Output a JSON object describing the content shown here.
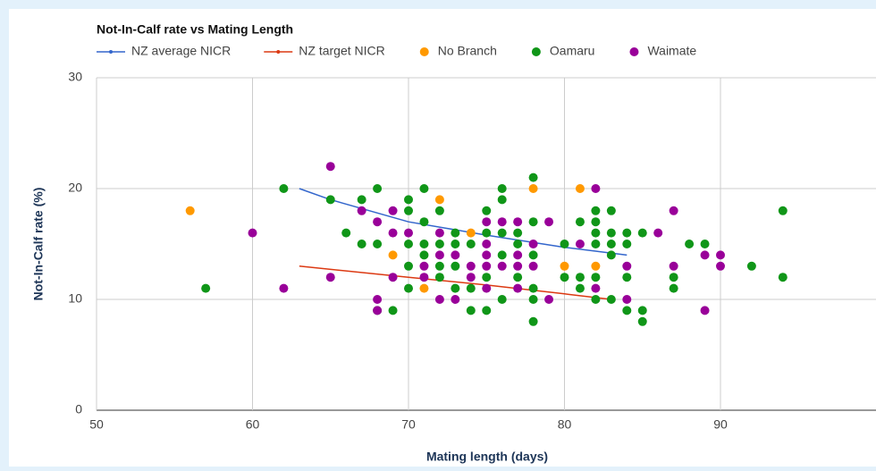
{
  "chart_data": {
    "type": "scatter",
    "title": "Not-In-Calf rate vs Mating Length",
    "x_label": "Mating length (days)",
    "y_label": "Not-In-Calf rate (%)",
    "xlim": [
      50,
      100
    ],
    "ylim": [
      0,
      30
    ],
    "xticks": [
      50,
      60,
      70,
      80,
      90
    ],
    "yticks": [
      0,
      10,
      20,
      30
    ],
    "grid": true,
    "legend": "top",
    "series": [
      {
        "name": "NZ average NICR",
        "color": "#3366cc",
        "type": "line",
        "x": [
          63,
          65,
          70,
          75,
          80,
          84
        ],
        "values": [
          20,
          19,
          17,
          15.8,
          14.7,
          14
        ]
      },
      {
        "name": "NZ target NICR",
        "color": "#dc3912",
        "type": "line",
        "x": [
          63,
          70,
          75,
          80,
          83
        ],
        "values": [
          13,
          12,
          11.3,
          10.5,
          10
        ]
      },
      {
        "name": "No Branch",
        "color": "#ff9900",
        "type": "scatter",
        "x": [
          56,
          69,
          71,
          72,
          74,
          78,
          80,
          81,
          82
        ],
        "values": [
          18,
          14,
          11,
          19,
          16,
          20,
          13,
          20,
          13
        ]
      },
      {
        "name": "Oamaru",
        "color": "#109618",
        "type": "scatter",
        "x": [
          57,
          62,
          65,
          66,
          67,
          67,
          68,
          68,
          68,
          69,
          70,
          70,
          70,
          70,
          70,
          71,
          71,
          71,
          71,
          72,
          72,
          72,
          72,
          73,
          73,
          73,
          73,
          74,
          74,
          74,
          75,
          75,
          75,
          75,
          76,
          76,
          76,
          76,
          76,
          77,
          77,
          77,
          78,
          78,
          78,
          78,
          78,
          78,
          80,
          80,
          81,
          81,
          81,
          82,
          82,
          82,
          82,
          82,
          82,
          83,
          83,
          83,
          83,
          83,
          84,
          84,
          84,
          84,
          85,
          85,
          85,
          87,
          87,
          88,
          89,
          92,
          94,
          94
        ],
        "values": [
          11,
          20,
          19,
          16,
          19,
          15,
          20,
          15,
          9,
          9,
          19,
          18,
          15,
          13,
          11,
          20,
          17,
          15,
          14,
          18,
          15,
          13,
          12,
          16,
          15,
          13,
          11,
          15,
          11,
          9,
          18,
          16,
          12,
          9,
          20,
          19,
          16,
          14,
          10,
          16,
          15,
          12,
          21,
          17,
          14,
          11,
          10,
          8,
          15,
          12,
          17,
          12,
          11,
          18,
          17,
          16,
          15,
          12,
          10,
          18,
          16,
          15,
          14,
          10,
          16,
          15,
          12,
          9,
          16,
          9,
          8,
          12,
          11,
          15,
          15,
          13,
          18,
          12
        ]
      },
      {
        "name": "Waimate",
        "color": "#990099",
        "type": "scatter",
        "x": [
          60,
          62,
          65,
          65,
          67,
          68,
          68,
          68,
          69,
          69,
          69,
          70,
          71,
          71,
          72,
          72,
          72,
          73,
          73,
          74,
          74,
          75,
          75,
          75,
          75,
          75,
          76,
          76,
          77,
          77,
          77,
          77,
          78,
          78,
          79,
          79,
          81,
          82,
          82,
          84,
          84,
          86,
          87,
          87,
          89,
          89,
          90,
          90
        ],
        "values": [
          16,
          11,
          22,
          12,
          18,
          17,
          10,
          9,
          18,
          16,
          12,
          16,
          13,
          12,
          16,
          14,
          10,
          14,
          10,
          13,
          12,
          17,
          15,
          14,
          13,
          11,
          17,
          13,
          17,
          14,
          13,
          11,
          15,
          13,
          17,
          10,
          15,
          20,
          11,
          13,
          10,
          16,
          18,
          13,
          14,
          9,
          14,
          13
        ]
      }
    ]
  }
}
